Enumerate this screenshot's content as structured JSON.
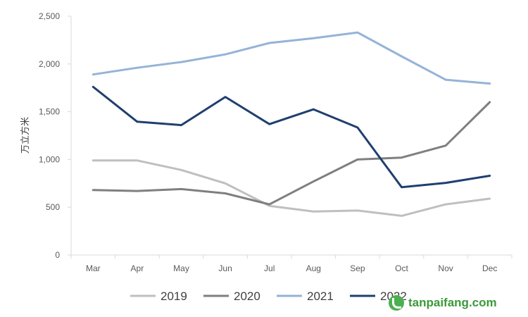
{
  "chart_data": {
    "type": "line",
    "categories": [
      "Mar",
      "Apr",
      "May",
      "Jun",
      "Jul",
      "Aug",
      "Sep",
      "Oct",
      "Nov",
      "Dec"
    ],
    "ylabel": "万立方米",
    "ylim": [
      0,
      2500
    ],
    "yticks": [
      0,
      500,
      1000,
      1500,
      2000,
      2500
    ],
    "ytick_labels": [
      "0",
      "500",
      "1,000",
      "1,500",
      "2,000",
      "2,500"
    ],
    "grid": false,
    "legend_position": "bottom",
    "series": [
      {
        "name": "2019",
        "color": "#bfbfbf",
        "values": [
          990,
          990,
          890,
          750,
          515,
          455,
          465,
          410,
          530,
          590
        ]
      },
      {
        "name": "2020",
        "color": "#7f7f7f",
        "values": [
          680,
          670,
          690,
          645,
          530,
          770,
          1000,
          1020,
          1145,
          1600
        ]
      },
      {
        "name": "2021",
        "color": "#95b3d7",
        "values": [
          1890,
          1960,
          2020,
          2100,
          2220,
          2270,
          2330,
          2080,
          1835,
          1795
        ]
      },
      {
        "name": "2022",
        "color": "#1f3f6f",
        "values": [
          1760,
          1395,
          1360,
          1655,
          1370,
          1525,
          1335,
          710,
          755,
          830
        ]
      }
    ]
  },
  "watermark": {
    "text": "tanpaifang.com",
    "icon": "leaf-logo-icon",
    "color": "#4caf50"
  }
}
